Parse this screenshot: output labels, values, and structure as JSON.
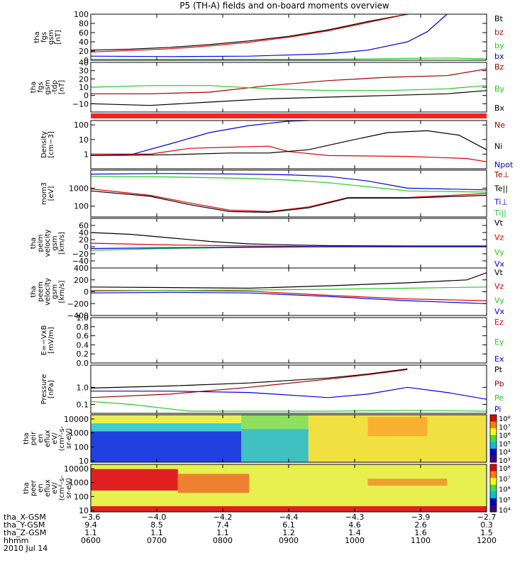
{
  "title": "P5 (TH-A) fields and on-board moments overview",
  "colors": {
    "black": "#000000",
    "red": "#e00000",
    "darkred": "#a00000",
    "green": "#22cc22",
    "blue": "#0000e0",
    "bar": "#ff2020"
  },
  "chart_data": [
    {
      "type": "line",
      "id": "p1",
      "ylabel": [
        "tha",
        "fgs",
        "gsm",
        "[nT]"
      ],
      "ylim": [
        0,
        100
      ],
      "yticks": [
        0,
        20,
        40,
        60,
        80,
        100
      ],
      "ytick_labels": [
        "0",
        "20",
        "40",
        "60",
        "80",
        "100"
      ],
      "legend": [
        {
          "name": "Bt",
          "color": "#000000"
        },
        {
          "name": "bz",
          "color": "#e00000"
        },
        {
          "name": "by",
          "color": "#22cc22"
        },
        {
          "name": "bx",
          "color": "#0000e0"
        }
      ],
      "series": [
        {
          "name": "Bt",
          "color": "#000000",
          "x": [
            0,
            0.1,
            0.2,
            0.3,
            0.4,
            0.5,
            0.6,
            0.7,
            0.8
          ],
          "y": [
            22,
            24,
            28,
            34,
            42,
            52,
            66,
            84,
            100
          ]
        },
        {
          "name": "bz",
          "color": "#e00000",
          "x": [
            0,
            0.1,
            0.2,
            0.3,
            0.4,
            0.5,
            0.6,
            0.7,
            0.8
          ],
          "y": [
            18,
            21,
            25,
            31,
            39,
            50,
            64,
            82,
            100
          ]
        },
        {
          "name": "by",
          "color": "#22cc22",
          "x": [
            0,
            0.2,
            0.4,
            0.6,
            0.8,
            0.9,
            0.95,
            1.0
          ],
          "y": [
            2,
            2,
            2,
            2,
            4,
            5,
            4,
            3
          ]
        },
        {
          "name": "bx",
          "color": "#0000e0",
          "x": [
            0,
            0.2,
            0.4,
            0.6,
            0.7,
            0.8,
            0.85,
            0.9
          ],
          "y": [
            9,
            8,
            9,
            14,
            22,
            40,
            62,
            100
          ]
        }
      ]
    },
    {
      "type": "line",
      "id": "p2",
      "ylabel": [
        "tha",
        "fgs",
        "gsm",
        "-tdp",
        "[nT]"
      ],
      "ylim": [
        -20,
        40
      ],
      "yticks": [
        -10,
        0,
        10,
        20,
        30,
        40
      ],
      "ytick_labels": [
        "−10",
        "0",
        "10",
        "20",
        "30",
        "40"
      ],
      "legend": [
        {
          "name": "Bz",
          "color": "#a00000"
        },
        {
          "name": "By",
          "color": "#22cc22"
        },
        {
          "name": "Bx",
          "color": "#000000"
        }
      ],
      "series": [
        {
          "name": "Bz",
          "color": "#a00000",
          "x": [
            0,
            0.15,
            0.3,
            0.45,
            0.6,
            0.75,
            0.9,
            1.0
          ],
          "y": [
            2,
            2,
            4,
            12,
            18,
            22,
            24,
            32
          ]
        },
        {
          "name": "By",
          "color": "#22cc22",
          "x": [
            0,
            0.15,
            0.3,
            0.45,
            0.6,
            0.75,
            0.9,
            1.0
          ],
          "y": [
            10,
            12,
            12,
            8,
            6,
            6,
            8,
            12
          ]
        },
        {
          "name": "Bx",
          "color": "#000000",
          "x": [
            0,
            0.15,
            0.3,
            0.45,
            0.6,
            0.75,
            0.9,
            1.0
          ],
          "y": [
            -10,
            -12,
            -8,
            -4,
            -2,
            0,
            2,
            6
          ]
        }
      ]
    },
    {
      "type": "line",
      "id": "p3",
      "log": true,
      "ylabel": [
        "Density",
        "[cm−3]"
      ],
      "ylim": [
        0.1,
        200
      ],
      "yticks": [
        1,
        10,
        100
      ],
      "ytick_labels": [
        "1",
        "10",
        "100"
      ],
      "legend": [
        {
          "name": "Ne",
          "color": "#a00000"
        },
        {
          "name": "Ni",
          "color": "#000000"
        },
        {
          "name": "Npot",
          "color": "#0000e0"
        }
      ],
      "series": [
        {
          "name": "Npot",
          "color": "#0000e0",
          "x": [
            0,
            0.1,
            0.2,
            0.3,
            0.4,
            0.5,
            0.55
          ],
          "y": [
            0.8,
            0.9,
            5,
            30,
            90,
            180,
            200
          ]
        },
        {
          "name": "Ne",
          "color": "#e00000",
          "x": [
            0,
            0.15,
            0.25,
            0.35,
            0.45,
            0.5,
            0.6,
            0.8,
            0.95,
            1.0
          ],
          "y": [
            1,
            1,
            2.5,
            3,
            3.5,
            1.5,
            0.8,
            0.7,
            0.5,
            0.3
          ]
        },
        {
          "name": "Ni",
          "color": "#000000",
          "x": [
            0,
            0.2,
            0.35,
            0.45,
            0.55,
            0.65,
            0.75,
            0.85,
            0.93,
            1.0
          ],
          "y": [
            0.8,
            0.9,
            1.2,
            1.2,
            2,
            8,
            30,
            40,
            20,
            2
          ]
        }
      ]
    },
    {
      "type": "line",
      "id": "p4",
      "log": true,
      "ylabel": [
        "mom3",
        "[eV]"
      ],
      "ylim": [
        25,
        10000
      ],
      "yticks": [
        100,
        1000
      ],
      "ytick_labels": [
        "100",
        "1000"
      ],
      "legend": [
        {
          "name": "Te⊥",
          "color": "#a00000"
        },
        {
          "name": "Te||",
          "color": "#000000"
        },
        {
          "name": "Ti⊥",
          "color": "#0000e0"
        },
        {
          "name": "Ti||",
          "color": "#22cc22"
        }
      ],
      "series": [
        {
          "name": "Ti⊥",
          "color": "#0000e0",
          "x": [
            0,
            0.2,
            0.4,
            0.5,
            0.6,
            0.7,
            0.8,
            1.0
          ],
          "y": [
            6000,
            6500,
            6000,
            5500,
            4500,
            2500,
            1000,
            800
          ]
        },
        {
          "name": "Ti||",
          "color": "#22cc22",
          "x": [
            0,
            0.2,
            0.4,
            0.5,
            0.6,
            0.7,
            0.8,
            1.0
          ],
          "y": [
            4500,
            4200,
            3500,
            2800,
            2000,
            1200,
            700,
            600
          ]
        },
        {
          "name": "Te⊥",
          "color": "#e00000",
          "x": [
            0,
            0.15,
            0.25,
            0.35,
            0.45,
            0.55,
            0.65,
            0.8,
            1.0
          ],
          "y": [
            900,
            400,
            150,
            60,
            50,
            90,
            300,
            300,
            500
          ]
        },
        {
          "name": "Te||",
          "color": "#000000",
          "x": [
            0,
            0.15,
            0.25,
            0.35,
            0.45,
            0.55,
            0.65,
            0.8,
            1.0
          ],
          "y": [
            700,
            350,
            120,
            50,
            45,
            80,
            280,
            280,
            400
          ]
        }
      ]
    },
    {
      "type": "line",
      "id": "p5",
      "ylabel": [
        "tha",
        "peim",
        "velocity",
        "gsm",
        "[km/s]"
      ],
      "ylim": [
        -60,
        80
      ],
      "yticks": [
        -40,
        -20,
        0,
        20,
        40,
        60
      ],
      "ytick_labels": [
        "−40",
        "−20",
        "0",
        "20",
        "40",
        "60"
      ],
      "legend": [
        {
          "name": "Vt",
          "color": "#000000"
        },
        {
          "name": "Vz",
          "color": "#e00000"
        },
        {
          "name": "Vy",
          "color": "#22cc22"
        },
        {
          "name": "Vx",
          "color": "#0000e0"
        }
      ],
      "series": [
        {
          "name": "Vt",
          "color": "#000000",
          "x": [
            0,
            0.1,
            0.2,
            0.3,
            0.4,
            0.5,
            0.6,
            0.8,
            1.0
          ],
          "y": [
            40,
            35,
            25,
            15,
            8,
            5,
            3,
            2,
            2
          ]
        },
        {
          "name": "Vz",
          "color": "#e00000",
          "x": [
            0,
            0.2,
            0.4,
            0.6,
            0.8,
            1.0
          ],
          "y": [
            10,
            5,
            2,
            0,
            0,
            0
          ]
        },
        {
          "name": "Vy",
          "color": "#22cc22",
          "x": [
            0,
            0.2,
            0.4,
            0.6,
            0.8,
            1.0
          ],
          "y": [
            -10,
            -5,
            -2,
            0,
            0,
            0
          ]
        },
        {
          "name": "Vx",
          "color": "#0000e0",
          "x": [
            0,
            0.2,
            0.4,
            0.6,
            0.8,
            1.0
          ],
          "y": [
            -5,
            -3,
            -1,
            0,
            0,
            0
          ]
        }
      ]
    },
    {
      "type": "line",
      "id": "p6",
      "ylabel": [
        "tha",
        "peem",
        "velocity",
        "gsm",
        "[km/s]"
      ],
      "ylim": [
        -400,
        400
      ],
      "yticks": [
        -400,
        -200,
        0,
        200,
        400
      ],
      "ytick_labels": [
        "−400",
        "−200",
        "0",
        "200",
        "400"
      ],
      "legend": [
        {
          "name": "Vt",
          "color": "#000000"
        },
        {
          "name": "Vz",
          "color": "#e00000"
        },
        {
          "name": "Vy",
          "color": "#22cc22"
        },
        {
          "name": "Vx",
          "color": "#0000e0"
        }
      ],
      "series": [
        {
          "name": "Vt",
          "color": "#000000",
          "x": [
            0,
            0.2,
            0.4,
            0.6,
            0.8,
            0.95,
            1.0
          ],
          "y": [
            80,
            70,
            60,
            100,
            150,
            200,
            320
          ]
        },
        {
          "name": "Vz",
          "color": "#e00000",
          "x": [
            0,
            0.2,
            0.4,
            0.6,
            0.8,
            1.0
          ],
          "y": [
            20,
            20,
            10,
            -60,
            -120,
            -150
          ]
        },
        {
          "name": "Vy",
          "color": "#22cc22",
          "x": [
            0,
            0.2,
            0.4,
            0.6,
            0.8,
            1.0
          ],
          "y": [
            10,
            20,
            30,
            40,
            60,
            80
          ]
        },
        {
          "name": "Vx",
          "color": "#0000e0",
          "x": [
            0,
            0.2,
            0.4,
            0.6,
            0.8,
            1.0
          ],
          "y": [
            -20,
            -10,
            -20,
            -80,
            -150,
            -200
          ]
        }
      ]
    },
    {
      "type": "line",
      "id": "p7",
      "ylabel": [
        "E=−VxB",
        "[mV/m]"
      ],
      "ylim": [
        0,
        1
      ],
      "yticks": [
        0,
        0.2,
        0.4,
        0.6,
        0.8,
        1.0
      ],
      "ytick_labels": [
        "0.0",
        "0.2",
        "0.4",
        "0.6",
        "0.8",
        "1.0"
      ],
      "legend": [
        {
          "name": "Ez",
          "color": "#e00000"
        },
        {
          "name": "Ey",
          "color": "#22cc22"
        },
        {
          "name": "Ex",
          "color": "#0000e0"
        }
      ],
      "series": []
    },
    {
      "type": "line",
      "id": "p8",
      "log": true,
      "ylabel": [
        "Pressure",
        "[nPa]"
      ],
      "ylim": [
        0.03,
        20
      ],
      "yticks": [
        0.1,
        1
      ],
      "ytick_labels": [
        "0.1",
        "1.0"
      ],
      "legend": [
        {
          "name": "Pt",
          "color": "#000000"
        },
        {
          "name": "Pb",
          "color": "#a00000"
        },
        {
          "name": "Pe",
          "color": "#22cc22"
        },
        {
          "name": "Pi",
          "color": "#0000e0"
        }
      ],
      "series": [
        {
          "name": "Pt",
          "color": "#000000",
          "x": [
            0,
            0.2,
            0.4,
            0.6,
            0.7,
            0.8
          ],
          "y": [
            0.9,
            1.2,
            1.8,
            3.5,
            6,
            12
          ]
        },
        {
          "name": "Pb",
          "color": "#a00000",
          "x": [
            0,
            0.2,
            0.4,
            0.6,
            0.7,
            0.8
          ],
          "y": [
            0.25,
            0.4,
            1,
            3,
            5.5,
            11
          ]
        },
        {
          "name": "Pi",
          "color": "#0000e0",
          "x": [
            0,
            0.2,
            0.4,
            0.6,
            0.7,
            0.8,
            0.9,
            1.0
          ],
          "y": [
            0.6,
            0.6,
            0.5,
            0.25,
            0.4,
            1.0,
            0.5,
            0.2
          ]
        },
        {
          "name": "Pe",
          "color": "#22cc22",
          "x": [
            0,
            0.1,
            0.25,
            0.4,
            0.6,
            0.8,
            1.0
          ],
          "y": [
            0.15,
            0.1,
            0.04,
            0.04,
            0.04,
            0.045,
            0.04
          ]
        }
      ]
    },
    {
      "type": "heatmap",
      "id": "p9",
      "ylabel": [
        "tha",
        "peir",
        "en",
        "eflux",
        "eV/",
        "(cm²-s-",
        "sr-eV)"
      ],
      "yticks": [
        10,
        100,
        1000,
        10000
      ],
      "ytick_labels": [
        "10",
        "100",
        "1000",
        "10000"
      ],
      "colorbar_labels": [
        "10⁸",
        "10⁷",
        "10⁶",
        "10⁵",
        "10⁴",
        "10³"
      ],
      "bands": [
        {
          "x0": 0,
          "x1": 0.38,
          "y0": 0,
          "y1": 0.18,
          "color": "#e8f050"
        },
        {
          "x0": 0,
          "x1": 0.38,
          "y0": 0.18,
          "y1": 0.35,
          "color": "#40d0d0"
        },
        {
          "x0": 0,
          "x1": 0.38,
          "y0": 0.35,
          "y1": 1,
          "color": "#2040e0"
        },
        {
          "x0": 0.38,
          "x1": 0.55,
          "y0": 0,
          "y1": 0.3,
          "color": "#90e060"
        },
        {
          "x0": 0.38,
          "x1": 0.55,
          "y0": 0.3,
          "y1": 1,
          "color": "#40c0c0"
        },
        {
          "x0": 0.55,
          "x1": 1,
          "y0": 0,
          "y1": 1,
          "color": "#f0e040"
        },
        {
          "x0": 0.7,
          "x1": 0.85,
          "y0": 0.05,
          "y1": 0.45,
          "color": "#f8b030"
        }
      ]
    },
    {
      "type": "heatmap",
      "id": "p10",
      "ylabel": [
        "tha",
        "peer",
        "en",
        "eflux",
        "eV/",
        "(cm²-s-",
        "sr-eV)"
      ],
      "yticks": [
        10,
        100,
        1000,
        10000
      ],
      "ytick_labels": [
        "10",
        "100",
        "1000",
        "10000"
      ],
      "colorbar_labels": [
        "10⁸",
        "10⁷",
        "10⁶",
        "10⁵",
        "10⁴"
      ],
      "bands": [
        {
          "x0": 0,
          "x1": 1,
          "y0": 0,
          "y1": 1,
          "color": "#e8f050"
        },
        {
          "x0": 0,
          "x1": 0.22,
          "y0": 0.1,
          "y1": 0.55,
          "color": "#e02020"
        },
        {
          "x0": 0.22,
          "x1": 0.4,
          "y0": 0.2,
          "y1": 0.6,
          "color": "#f08030"
        },
        {
          "x0": 0,
          "x1": 1,
          "y0": 0.88,
          "y1": 1,
          "color": "#e02020"
        },
        {
          "x0": 0.7,
          "x1": 0.9,
          "y0": 0.3,
          "y1": 0.45,
          "color": "#f0a030"
        }
      ]
    }
  ],
  "xaxis": {
    "ticks": [
      0,
      0.1667,
      0.3333,
      0.5,
      0.6667,
      0.8333,
      1.0
    ],
    "rows": [
      {
        "label": "tha_X-GSM",
        "values": [
          "−3.6",
          "−4.0",
          "−4.2",
          "−4.4",
          "−4.3",
          "−3.9",
          "−2.7"
        ]
      },
      {
        "label": "tha_Y-GSM",
        "values": [
          "9.4",
          "8.5",
          "7.4",
          "6.1",
          "4.6",
          "2.6",
          "0.3"
        ]
      },
      {
        "label": "tha_Z-GSM",
        "values": [
          "1.1",
          "1.1",
          "1.1",
          "1.2",
          "1.4",
          "1.6",
          "1.5"
        ]
      },
      {
        "label": "hhmm",
        "values": [
          "0600",
          "0700",
          "0800",
          "0900",
          "1000",
          "1100",
          "1200"
        ]
      }
    ],
    "date": "2010 Jul 14"
  }
}
